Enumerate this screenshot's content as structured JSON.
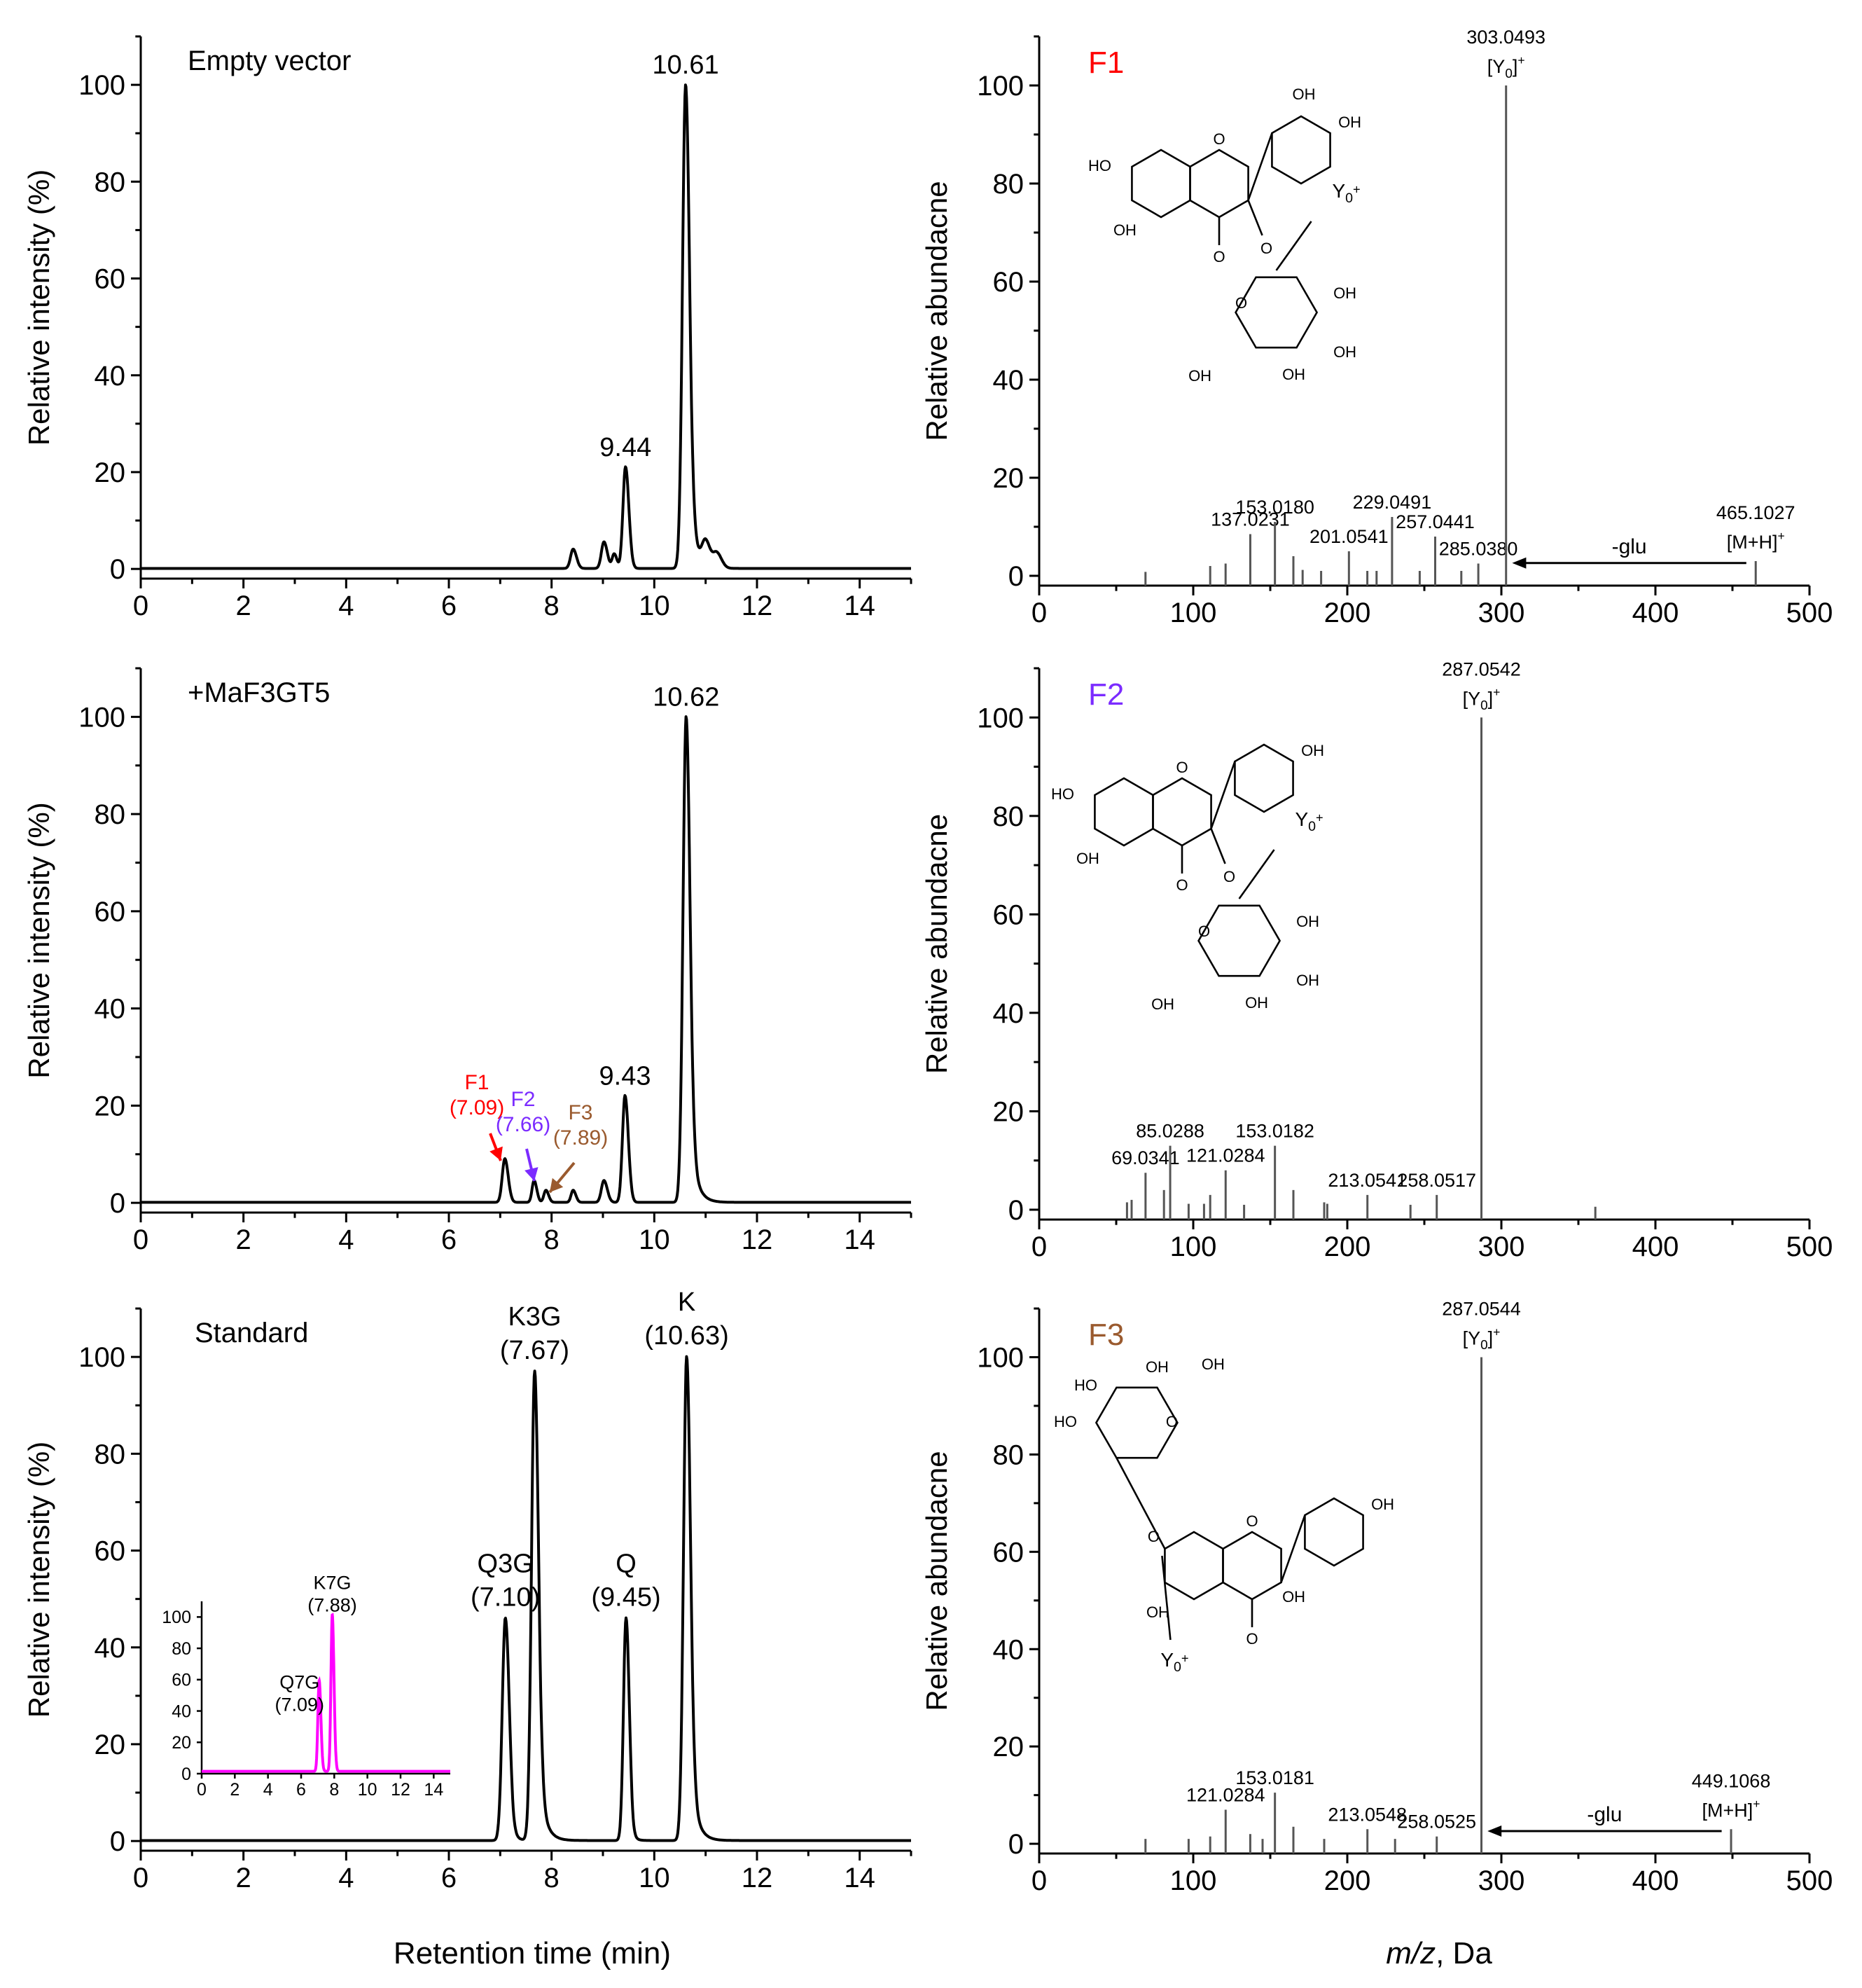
{
  "figure": {
    "x_label_left": "Retention time (min)",
    "x_label_right_italic": "m/z",
    "x_label_right_rest": ", Da"
  },
  "colors": {
    "f1": "#ff0000",
    "f2": "#7b2bff",
    "f3": "#9a5a2e",
    "trace": "#000000",
    "inset": "#ff00ff",
    "ms_bar": "#555555"
  },
  "chart_data": [
    {
      "id": "chrom_empty",
      "type": "line",
      "panel_label": "Empty vector",
      "ylabel": "Relative intensity (%)",
      "xlim": [
        0,
        15
      ],
      "ylim": [
        -2,
        110
      ],
      "xticks": [
        0,
        2,
        4,
        6,
        8,
        10,
        12,
        14
      ],
      "yticks": [
        0,
        20,
        40,
        60,
        80,
        100
      ],
      "peaks": [
        {
          "rt": 8.42,
          "height": 4,
          "width": 0.05
        },
        {
          "rt": 9.02,
          "height": 5.5,
          "width": 0.05
        },
        {
          "rt": 9.22,
          "height": 3,
          "width": 0.04
        },
        {
          "rt": 9.44,
          "height": 21,
          "width": 0.05,
          "label": "9.44"
        },
        {
          "rt": 10.61,
          "height": 100,
          "width": 0.06,
          "tail": 0.12,
          "label": "10.61"
        },
        {
          "rt": 11.0,
          "height": 5,
          "width": 0.07
        },
        {
          "rt": 11.22,
          "height": 3,
          "width": 0.07
        }
      ]
    },
    {
      "id": "chrom_maf3gt5",
      "type": "line",
      "panel_label": "+MaF3GT5",
      "ylabel": "Relative intensity (%)",
      "xlim": [
        0,
        15
      ],
      "ylim": [
        -2,
        110
      ],
      "xticks": [
        0,
        2,
        4,
        6,
        8,
        10,
        12,
        14
      ],
      "yticks": [
        0,
        20,
        40,
        60,
        80,
        100
      ],
      "peaks": [
        {
          "rt": 7.09,
          "height": 9,
          "width": 0.05
        },
        {
          "rt": 7.66,
          "height": 4.5,
          "width": 0.04
        },
        {
          "rt": 7.89,
          "height": 2.5,
          "width": 0.04
        },
        {
          "rt": 8.42,
          "height": 2.5,
          "width": 0.04
        },
        {
          "rt": 9.02,
          "height": 4.5,
          "width": 0.05
        },
        {
          "rt": 9.43,
          "height": 22,
          "width": 0.05,
          "label": "9.43"
        },
        {
          "rt": 10.62,
          "height": 100,
          "width": 0.06,
          "tail": 0.12,
          "label": "10.62"
        }
      ],
      "annotations": [
        {
          "name": "F1",
          "rt_text": "(7.09)",
          "color_key": "f1"
        },
        {
          "name": "F2",
          "rt_text": "(7.66)",
          "color_key": "f2"
        },
        {
          "name": "F3",
          "rt_text": "(7.89)",
          "color_key": "f3"
        }
      ]
    },
    {
      "id": "chrom_standard",
      "type": "line",
      "panel_label": "Standard",
      "ylabel": "Relative intensity (%)",
      "xlim": [
        0,
        15
      ],
      "ylim": [
        -2,
        110
      ],
      "xticks": [
        0,
        2,
        4,
        6,
        8,
        10,
        12,
        14
      ],
      "yticks": [
        0,
        20,
        40,
        60,
        80,
        100
      ],
      "peaks": [
        {
          "rt": 7.1,
          "height": 46,
          "width": 0.06,
          "tail": 0.08,
          "label": "Q3G",
          "sub": "(7.10)"
        },
        {
          "rt": 7.67,
          "height": 97,
          "width": 0.06,
          "tail": 0.12,
          "label": "K3G",
          "sub": "(7.67)"
        },
        {
          "rt": 9.45,
          "height": 46,
          "width": 0.05,
          "tail": 0.06,
          "label": "Q",
          "sub": "(9.45)"
        },
        {
          "rt": 10.63,
          "height": 100,
          "width": 0.06,
          "tail": 0.12,
          "label": "K",
          "sub": "(10.63)"
        }
      ],
      "inset": {
        "xlim": [
          0,
          15
        ],
        "ylim": [
          0,
          110
        ],
        "xticks": [
          0,
          2,
          4,
          6,
          8,
          10,
          12,
          14
        ],
        "yticks": [
          0,
          20,
          40,
          60,
          80,
          100
        ],
        "peaks": [
          {
            "rt": 7.09,
            "height": 58,
            "width": 0.08,
            "label": "Q7G",
            "sub": "(7.09)"
          },
          {
            "rt": 7.88,
            "height": 100,
            "width": 0.08,
            "label": "K7G",
            "sub": "(7.88)"
          }
        ]
      }
    },
    {
      "id": "ms_f1",
      "type": "bar",
      "panel_label": "F1",
      "label_color_key": "f1",
      "ylabel": "Relative abundacne",
      "xlim": [
        0,
        500
      ],
      "ylim": [
        -2,
        110
      ],
      "xticks": [
        0,
        100,
        200,
        300,
        400,
        500
      ],
      "yticks": [
        0,
        20,
        40,
        60,
        80,
        100
      ],
      "peaks": [
        {
          "mz": 69,
          "i": 0.8
        },
        {
          "mz": 111,
          "i": 2
        },
        {
          "mz": 121,
          "i": 2.5
        },
        {
          "mz": 137.0231,
          "i": 8.5,
          "label": "137.0231"
        },
        {
          "mz": 153.018,
          "i": 11,
          "label": "153.0180"
        },
        {
          "mz": 165,
          "i": 4
        },
        {
          "mz": 171,
          "i": 1.2
        },
        {
          "mz": 183,
          "i": 1
        },
        {
          "mz": 201.0541,
          "i": 5,
          "label": "201.0541"
        },
        {
          "mz": 213,
          "i": 1
        },
        {
          "mz": 219,
          "i": 1
        },
        {
          "mz": 229.0491,
          "i": 12,
          "label": "229.0491"
        },
        {
          "mz": 247,
          "i": 1
        },
        {
          "mz": 257.0441,
          "i": 8,
          "label": "257.0441"
        },
        {
          "mz": 274,
          "i": 1
        },
        {
          "mz": 285.038,
          "i": 2.5,
          "label": "285.0380"
        },
        {
          "mz": 303.0493,
          "i": 100,
          "label": "303.0493",
          "sub": "[Y0]+"
        },
        {
          "mz": 465.1027,
          "i": 3,
          "label": "465.1027",
          "sub": "[M+H]+"
        }
      ],
      "loss": {
        "text": "-glu",
        "from_mz": 459,
        "to_mz": 307
      },
      "structure": "quercetin-3-O-glucoside",
      "fragment_label": "Y0+"
    },
    {
      "id": "ms_f2",
      "type": "bar",
      "panel_label": "F2",
      "label_color_key": "f2",
      "ylabel": "Relative abundacne",
      "xlim": [
        0,
        500
      ],
      "ylim": [
        -2,
        110
      ],
      "xticks": [
        0,
        100,
        200,
        300,
        400,
        500
      ],
      "yticks": [
        0,
        20,
        40,
        60,
        80,
        100
      ],
      "peaks": [
        {
          "mz": 57,
          "i": 1.5
        },
        {
          "mz": 60,
          "i": 2
        },
        {
          "mz": 69.0341,
          "i": 7.5,
          "label": "69.0341"
        },
        {
          "mz": 81,
          "i": 4
        },
        {
          "mz": 85.0288,
          "i": 13,
          "label": "85.0288"
        },
        {
          "mz": 97,
          "i": 1.2
        },
        {
          "mz": 107,
          "i": 1.2
        },
        {
          "mz": 111,
          "i": 3
        },
        {
          "mz": 121.0284,
          "i": 8,
          "label": "121.0284"
        },
        {
          "mz": 133,
          "i": 1
        },
        {
          "mz": 153.0182,
          "i": 13,
          "label": "153.0182"
        },
        {
          "mz": 165,
          "i": 4
        },
        {
          "mz": 185,
          "i": 1.5
        },
        {
          "mz": 187,
          "i": 1.2
        },
        {
          "mz": 213.0541,
          "i": 3,
          "label": "213.0541"
        },
        {
          "mz": 241,
          "i": 1
        },
        {
          "mz": 258.0517,
          "i": 3,
          "label": "258.0517"
        },
        {
          "mz": 287.0542,
          "i": 100,
          "label": "287.0542",
          "sub": "[Y0]+"
        },
        {
          "mz": 361,
          "i": 0.6
        }
      ],
      "structure": "kaempferol-3-O-glucoside",
      "fragment_label": "Y0+"
    },
    {
      "id": "ms_f3",
      "type": "bar",
      "panel_label": "F3",
      "label_color_key": "f3",
      "ylabel": "Relative abundacne",
      "xlim": [
        0,
        500
      ],
      "ylim": [
        -2,
        110
      ],
      "xticks": [
        0,
        100,
        200,
        300,
        400,
        500
      ],
      "yticks": [
        0,
        20,
        40,
        60,
        80,
        100
      ],
      "peaks": [
        {
          "mz": 69,
          "i": 1
        },
        {
          "mz": 97,
          "i": 1
        },
        {
          "mz": 111,
          "i": 1.5
        },
        {
          "mz": 121.0284,
          "i": 7,
          "label": "121.0284"
        },
        {
          "mz": 137,
          "i": 2
        },
        {
          "mz": 145,
          "i": 1
        },
        {
          "mz": 153.0181,
          "i": 10.5,
          "label": "153.0181"
        },
        {
          "mz": 165,
          "i": 3.5
        },
        {
          "mz": 185,
          "i": 1
        },
        {
          "mz": 213.0548,
          "i": 3,
          "label": "213.0548"
        },
        {
          "mz": 231,
          "i": 1
        },
        {
          "mz": 258.0525,
          "i": 1.5,
          "label": "258.0525"
        },
        {
          "mz": 287.0544,
          "i": 100,
          "label": "287.0544",
          "sub": "[Y0]+"
        },
        {
          "mz": 449.1068,
          "i": 3,
          "label": "449.1068",
          "sub": "[M+H]+"
        }
      ],
      "loss": {
        "text": "-glu",
        "from_mz": 443,
        "to_mz": 291
      },
      "structure": "kaempferol-7-O-glucoside",
      "fragment_label": "Y0+"
    }
  ]
}
